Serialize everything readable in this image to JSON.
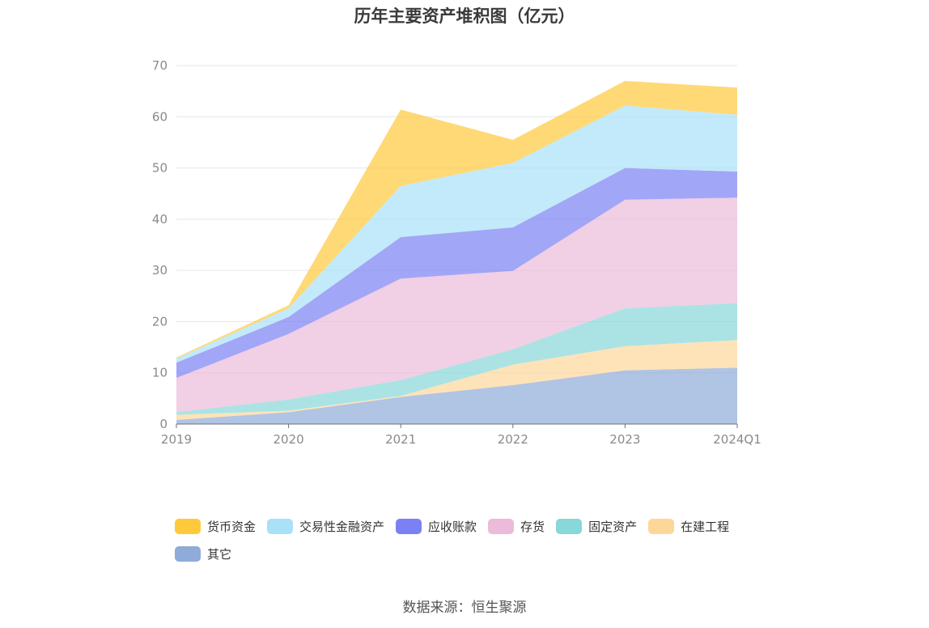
{
  "chart_data": {
    "type": "area",
    "stacked": true,
    "title": "历年主要资产堆积图（亿元）",
    "xlabel": "",
    "ylabel": "",
    "categories": [
      "2019",
      "2020",
      "2021",
      "2022",
      "2023",
      "2024Q1"
    ],
    "ylim": [
      0,
      70
    ],
    "yticks": [
      0,
      10,
      20,
      30,
      40,
      50,
      60,
      70
    ],
    "grid": true,
    "legend_position": "bottom",
    "series": [
      {
        "name": "其它",
        "color": "#8fabd9",
        "values": [
          0.8,
          2.3,
          5.3,
          7.6,
          10.5,
          11.0
        ]
      },
      {
        "name": "在建工程",
        "color": "#fdd79a",
        "values": [
          1.0,
          0.3,
          0.2,
          4.0,
          4.7,
          5.4
        ]
      },
      {
        "name": "固定资产",
        "color": "#88d7d9",
        "values": [
          0.5,
          2.2,
          3.1,
          3.0,
          7.4,
          7.2
        ]
      },
      {
        "name": "存货",
        "color": "#ebbbd9",
        "values": [
          6.7,
          12.8,
          19.8,
          15.3,
          21.2,
          20.6
        ]
      },
      {
        "name": "应收账款",
        "color": "#7b80f2",
        "values": [
          3.0,
          3.3,
          8.1,
          8.5,
          6.2,
          5.1
        ]
      },
      {
        "name": "交易性金融资产",
        "color": "#a8e1f8",
        "values": [
          0.8,
          1.7,
          10.0,
          12.6,
          12.2,
          11.1
        ]
      },
      {
        "name": "货币资金",
        "color": "#ffc93c",
        "values": [
          0.2,
          0.6,
          14.9,
          4.5,
          4.8,
          5.3
        ]
      }
    ],
    "legend_order": [
      "货币资金",
      "交易性金融资产",
      "应收账款",
      "存货",
      "固定资产",
      "在建工程",
      "其它"
    ]
  },
  "source": "数据来源：恒生聚源"
}
